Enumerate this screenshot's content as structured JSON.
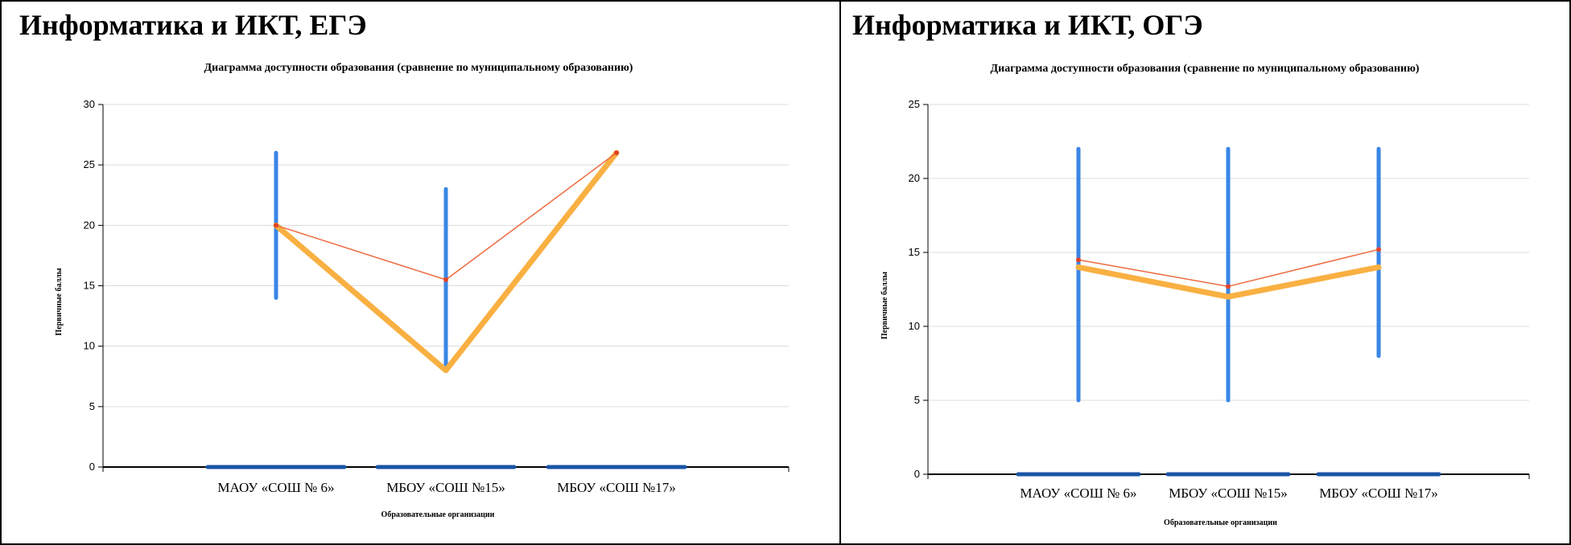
{
  "chart_data": [
    {
      "type": "line",
      "panel_title": "Информатика и ИКТ, ЕГЭ",
      "title": "Диаграмма доступности образования (сравнение по муниципальному образованию)",
      "xlabel": "Образовательные организации",
      "ylabel": "Первичные баллы",
      "ylim": [
        0,
        30
      ],
      "yticks": [
        0,
        5,
        10,
        15,
        20,
        25,
        30
      ],
      "grid": true,
      "categories": [
        "МАОУ «СОШ № 6»",
        "МБОУ «СОШ №15»",
        "МБОУ «СОШ №17»"
      ],
      "ranges": [
        [
          14,
          26
        ],
        [
          8,
          23
        ],
        [
          26,
          26
        ]
      ],
      "series": [
        {
          "values": [
            20,
            8,
            26
          ],
          "color": "#f9b042"
        },
        {
          "values": [
            20,
            15.5,
            26
          ],
          "color": "#ee6a3f"
        }
      ],
      "range_color": "#3a86e6",
      "base_color": "#1a55a5"
    },
    {
      "type": "line",
      "panel_title": "Информатика и ИКТ, ОГЭ",
      "title": "Диаграмма доступности образования (сравнение по муниципальному образованию)",
      "xlabel": "Образовательные организации",
      "ylabel": "Первичные баллы",
      "ylim": [
        0,
        25
      ],
      "yticks": [
        0,
        5,
        10,
        15,
        20,
        25
      ],
      "grid": true,
      "categories": [
        "МАОУ «СОШ № 6»",
        "МБОУ «СОШ №15»",
        "МБОУ «СОШ №17»"
      ],
      "ranges": [
        [
          5,
          22
        ],
        [
          5,
          22
        ],
        [
          8,
          22
        ]
      ],
      "series": [
        {
          "values": [
            14,
            12,
            14
          ],
          "color": "#f9b042"
        },
        {
          "values": [
            14.5,
            12.7,
            15.2
          ],
          "color": "#ee6a3f"
        }
      ],
      "range_color": "#3a86e6",
      "base_color": "#1a55a5"
    }
  ]
}
